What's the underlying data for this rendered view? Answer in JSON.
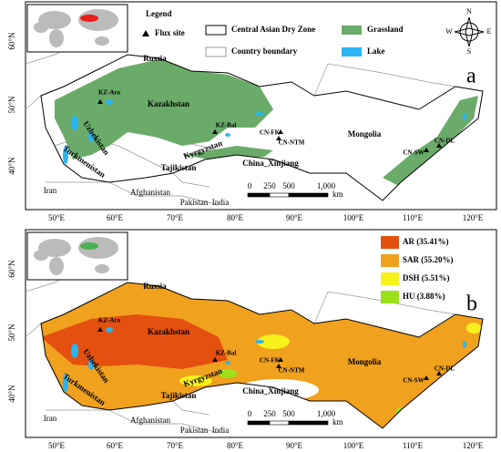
{
  "panels": [
    {
      "label": "a",
      "legend": {
        "title": "Legend",
        "items": [
          "Flux site",
          "Central Asian Dry Zone",
          "Grassland",
          "Country boundary",
          "Lake"
        ]
      }
    },
    {
      "label": "b",
      "legend": {
        "items": [
          {
            "label": "AR (35.41%)",
            "color": "#e4500f"
          },
          {
            "label": "SAR (55.20%)",
            "color": "#f0a11e"
          },
          {
            "label": "DSH (5.51%)",
            "color": "#f7f21c"
          },
          {
            "label": "HU (3.88%)",
            "color": "#9be21a"
          }
        ]
      }
    }
  ],
  "compass": [
    "N",
    "E",
    "S",
    "W"
  ],
  "lat_labels": [
    "60°N",
    "50°N",
    "40°N"
  ],
  "lon_labels": [
    "50°E",
    "60°E",
    "70°E",
    "80°E",
    "90°E",
    "100°E",
    "110°E",
    "120°E"
  ],
  "places": [
    "Russia",
    "Kazakhstan",
    "Mongolia",
    "China_Xinjiang",
    "Uzbekistan",
    "Turkmenistan",
    "Tajikistan",
    "Kyrgyzstan",
    "Iran",
    "Afghanistan",
    "Pakistan",
    "India"
  ],
  "flux_sites": [
    "KZ-Ara",
    "KZ-Bal",
    "CN-FK",
    "CN-NTM",
    "CN-SW",
    "CN-DL"
  ],
  "scale": {
    "labels": [
      "0",
      "250",
      "500",
      "1,000"
    ],
    "unit": "km"
  }
}
